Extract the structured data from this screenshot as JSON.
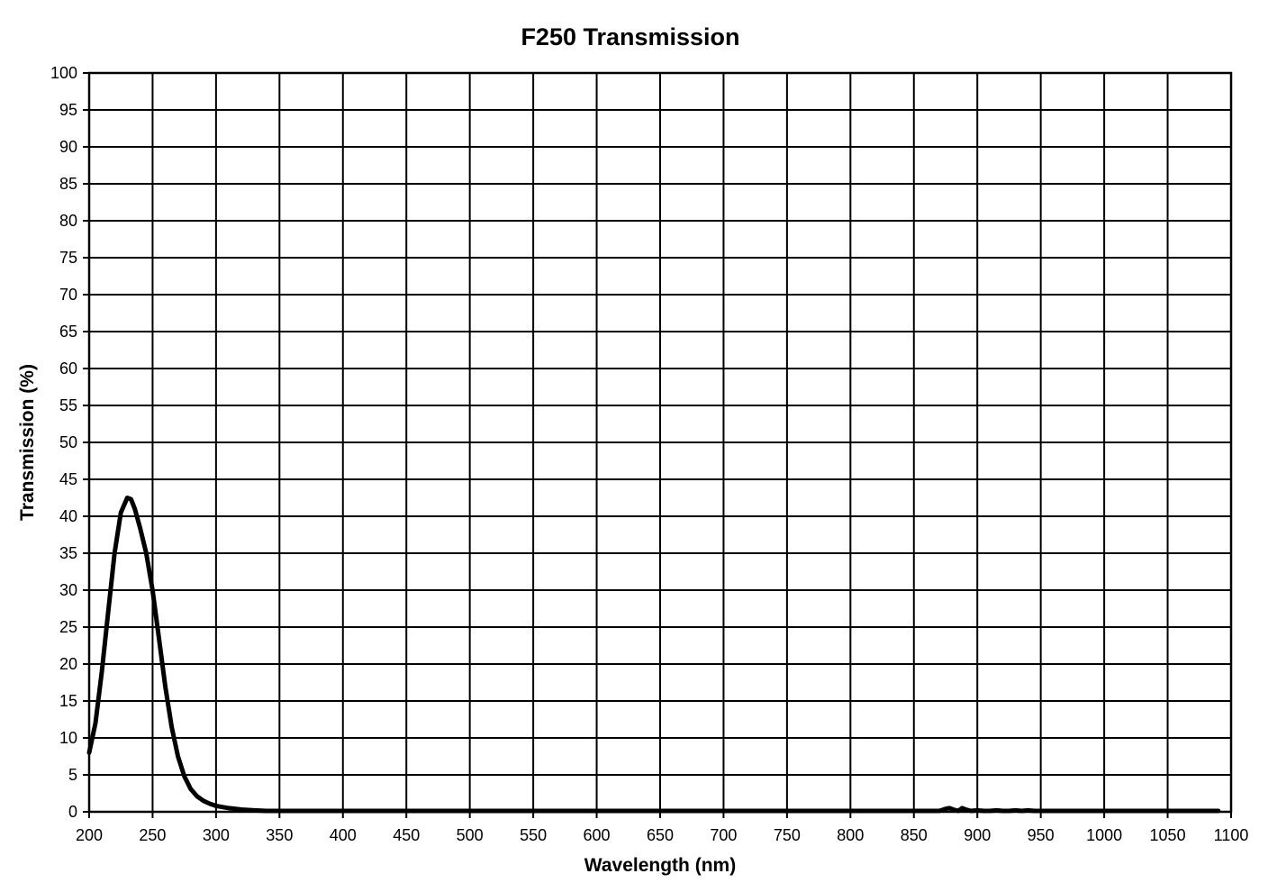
{
  "chart_data": {
    "type": "line",
    "title": "F250 Transmission",
    "xlabel": "Wavelength (nm)",
    "ylabel": "Transmission (%)",
    "xlim": [
      200,
      1100
    ],
    "ylim": [
      0,
      100
    ],
    "x_ticks": [
      "200",
      "250",
      "300",
      "350",
      "400",
      "450",
      "500",
      "550",
      "600",
      "650",
      "700",
      "750",
      "800",
      "850",
      "900",
      "950",
      "1000",
      "1050",
      "1100"
    ],
    "y_ticks": [
      "0",
      "5",
      "10",
      "15",
      "20",
      "25",
      "30",
      "35",
      "40",
      "45",
      "50",
      "55",
      "60",
      "65",
      "70",
      "75",
      "80",
      "85",
      "90",
      "95",
      "100"
    ],
    "grid": true,
    "line_color": "#000000",
    "series": [
      {
        "x": [
          200,
          205,
          210,
          215,
          220,
          225,
          230,
          233,
          236,
          240,
          245,
          250,
          255,
          260,
          265,
          270,
          275,
          280,
          285,
          290,
          295,
          300,
          310,
          320,
          330,
          340,
          350,
          360,
          380,
          400,
          500,
          600,
          700,
          800,
          850,
          870,
          875,
          878,
          881,
          885,
          888,
          891,
          895,
          900,
          905,
          910,
          915,
          920,
          925,
          930,
          935,
          940,
          945,
          950,
          960,
          970,
          1000,
          1050,
          1090
        ],
        "y": [
          8,
          12,
          19,
          27,
          35,
          40.5,
          42.5,
          42.3,
          41,
          38.5,
          35,
          30,
          23.5,
          17,
          11.5,
          7.5,
          4.8,
          3.1,
          2.1,
          1.5,
          1.1,
          0.8,
          0.5,
          0.3,
          0.2,
          0.1,
          0.1,
          0.05,
          0,
          0,
          0,
          0,
          0,
          0,
          0,
          0.1,
          0.4,
          0.5,
          0.3,
          0.1,
          0.5,
          0.3,
          0.1,
          0.2,
          0,
          0.1,
          0.2,
          0,
          0.1,
          0.2,
          0.1,
          0.2,
          0.1,
          0.1,
          0.1,
          0,
          0,
          0,
          0
        ]
      }
    ]
  }
}
